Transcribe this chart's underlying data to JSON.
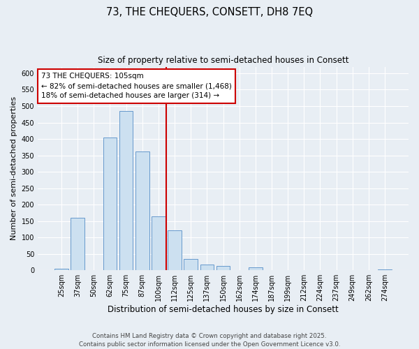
{
  "title": "73, THE CHEQUERS, CONSETT, DH8 7EQ",
  "subtitle": "Size of property relative to semi-detached houses in Consett",
  "xlabel": "Distribution of semi-detached houses by size in Consett",
  "ylabel": "Number of semi-detached properties",
  "bar_labels": [
    "25sqm",
    "37sqm",
    "50sqm",
    "62sqm",
    "75sqm",
    "87sqm",
    "100sqm",
    "112sqm",
    "125sqm",
    "137sqm",
    "150sqm",
    "162sqm",
    "174sqm",
    "187sqm",
    "199sqm",
    "212sqm",
    "224sqm",
    "237sqm",
    "249sqm",
    "262sqm",
    "274sqm"
  ],
  "bar_values": [
    5,
    160,
    0,
    405,
    485,
    362,
    165,
    122,
    35,
    18,
    13,
    0,
    8,
    0,
    0,
    0,
    0,
    0,
    0,
    0,
    2
  ],
  "bar_color": "#cce0f0",
  "bar_edge_color": "#6699cc",
  "annotation_title": "73 THE CHEQUERS: 105sqm",
  "annotation_line1": "← 82% of semi-detached houses are smaller (1,468)",
  "annotation_line2": "18% of semi-detached houses are larger (314) →",
  "vline_x_index": 6.5,
  "vline_color": "#cc0000",
  "ylim": [
    0,
    620
  ],
  "yticks": [
    0,
    50,
    100,
    150,
    200,
    250,
    300,
    350,
    400,
    450,
    500,
    550,
    600
  ],
  "bg_color": "#e8eef4",
  "plot_bg_color": "#e8eef4",
  "grid_color": "#ffffff",
  "footer_line1": "Contains HM Land Registry data © Crown copyright and database right 2025.",
  "footer_line2": "Contains public sector information licensed under the Open Government Licence v3.0."
}
